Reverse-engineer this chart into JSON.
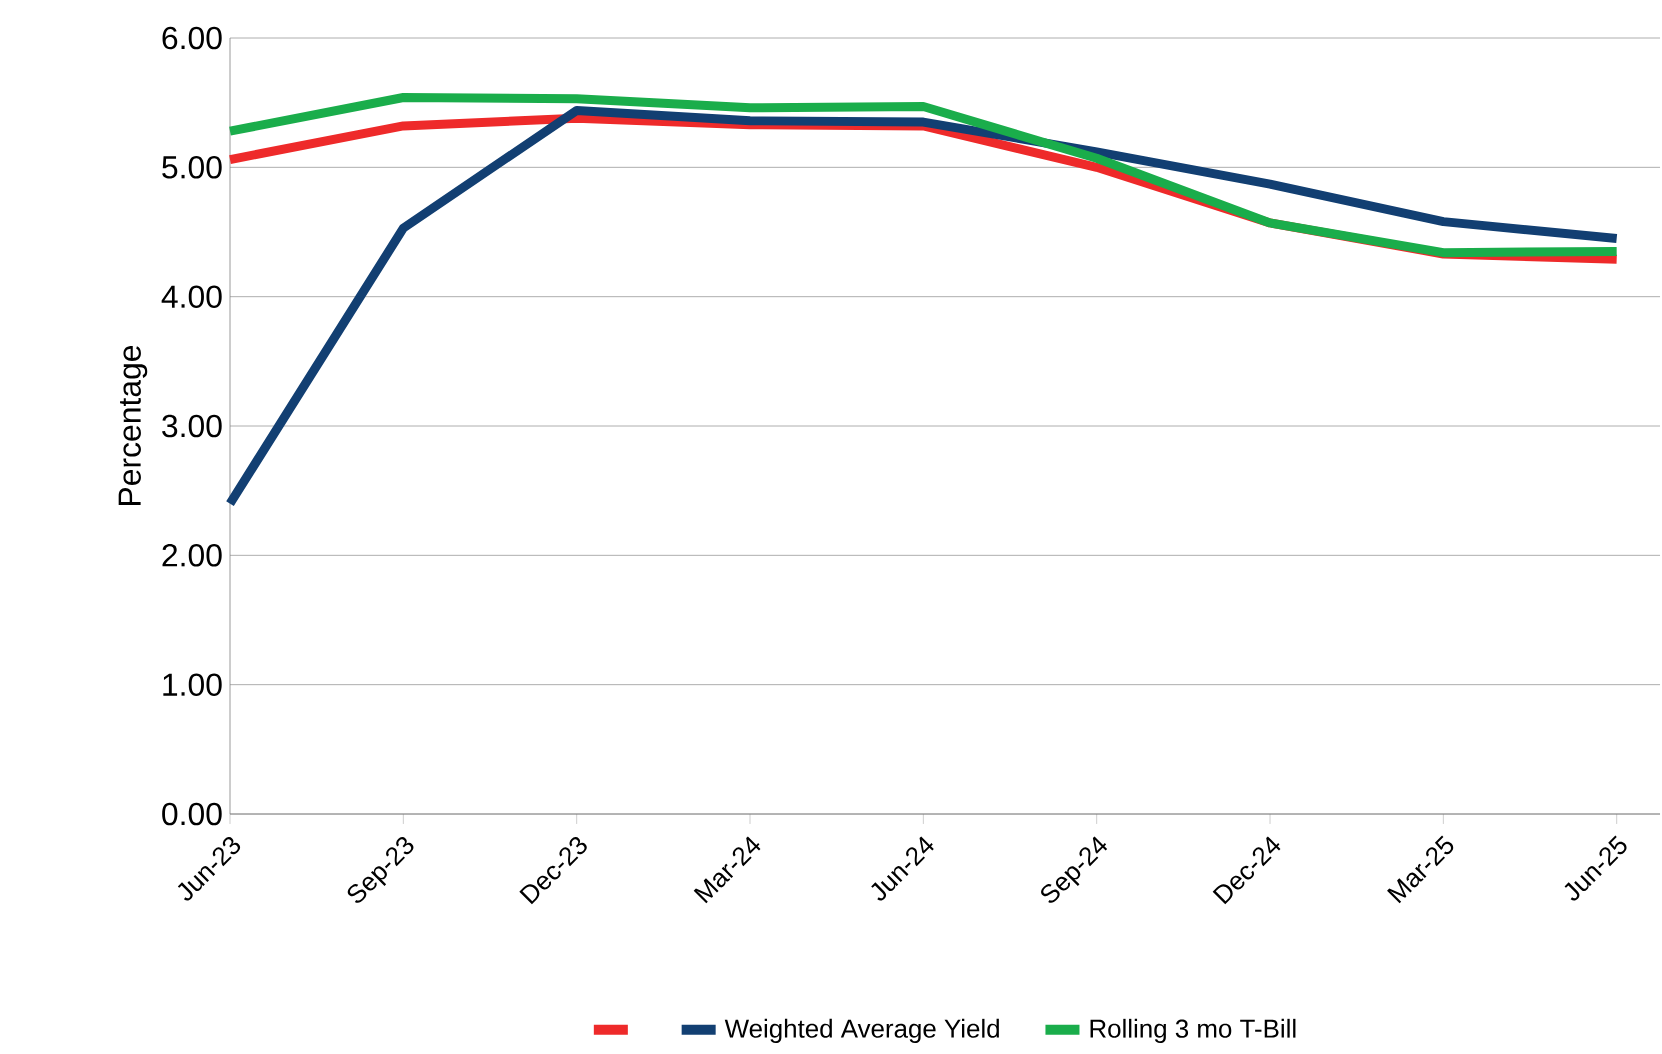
{
  "chart_data": {
    "type": "line",
    "ylabel": "Percentage",
    "categories": [
      "Jun-23",
      "Sep-23",
      "Dec-23",
      "Mar-24",
      "Jun-24",
      "Sep-24",
      "Dec-24",
      "Mar-25",
      "Jun-25"
    ],
    "series": [
      {
        "color": "#ee2a2a",
        "values": [
          5.06,
          5.32,
          5.38,
          5.33,
          5.32,
          5.0,
          4.57,
          4.33,
          4.29
        ]
      },
      {
        "name": "Weighted Average Yield",
        "color": "#123f72",
        "values": [
          2.4,
          4.53,
          5.44,
          5.36,
          5.35,
          5.12,
          4.87,
          4.58,
          4.45
        ]
      },
      {
        "name": "Rolling 3 mo T-Bill",
        "color": "#1aad4b",
        "values": [
          5.28,
          5.54,
          5.53,
          5.46,
          5.47,
          5.07,
          4.57,
          4.34,
          4.35
        ]
      }
    ],
    "ylim": [
      0,
      6
    ],
    "yticks": [
      {
        "value": 0,
        "label": "0.00"
      },
      {
        "value": 1,
        "label": "1.00"
      },
      {
        "value": 2,
        "label": "2.00"
      },
      {
        "value": 3,
        "label": "3.00"
      },
      {
        "value": 4,
        "label": "4.00"
      },
      {
        "value": 5,
        "label": "5.00"
      },
      {
        "value": 6,
        "label": "6.00"
      }
    ],
    "grid": "y",
    "legend": "bottom",
    "marker": "none",
    "line_style": "solid"
  }
}
